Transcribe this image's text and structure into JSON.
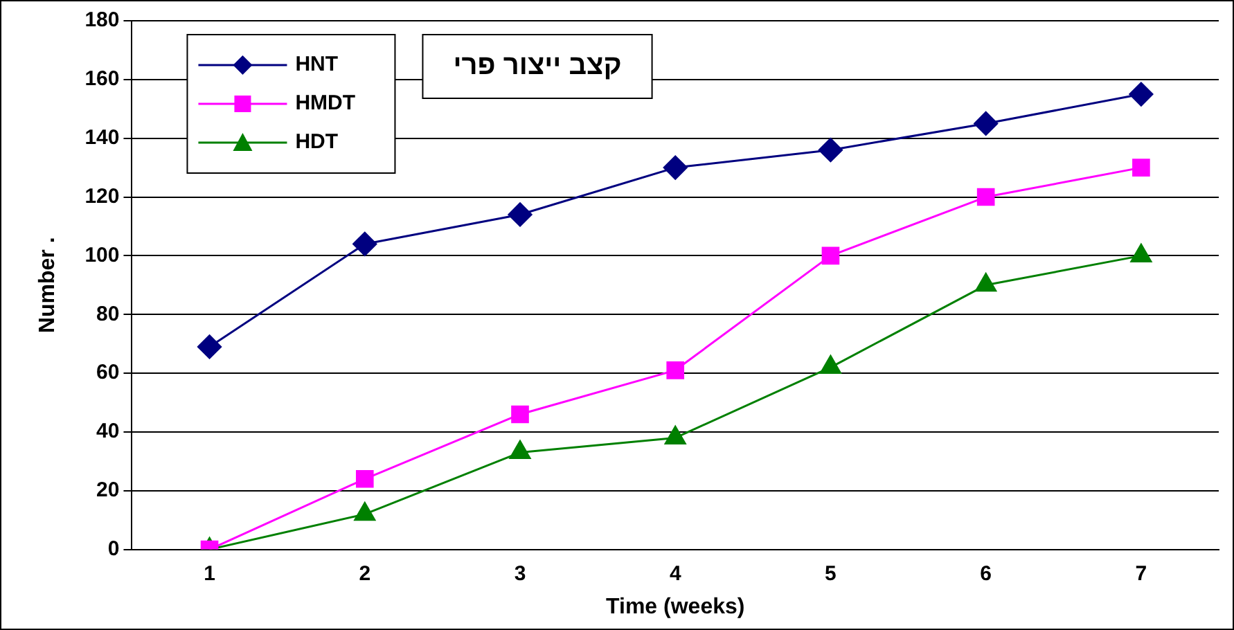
{
  "chart_data": {
    "type": "line",
    "title": "קצב ייצור פרי",
    "xlabel": "Time (weeks)",
    "ylabel": "Number .",
    "categories": [
      "1",
      "2",
      "3",
      "4",
      "5",
      "6",
      "7"
    ],
    "series": [
      {
        "name": "HNT",
        "color": "#000080",
        "values": [
          69,
          104,
          114,
          130,
          136,
          145,
          155
        ],
        "marker": "diamond"
      },
      {
        "name": "HMDT",
        "color": "#ff00ff",
        "values": [
          0,
          24,
          46,
          61,
          100,
          120,
          130
        ],
        "marker": "square"
      },
      {
        "name": "HDT",
        "color": "#008000",
        "values": [
          0,
          12,
          33,
          38,
          62,
          90,
          100
        ],
        "marker": "triangle"
      }
    ],
    "ylim": [
      0,
      180
    ],
    "yticks": [
      0,
      20,
      40,
      60,
      80,
      100,
      120,
      140,
      160,
      180
    ],
    "grid": "y",
    "legend": "top left"
  }
}
